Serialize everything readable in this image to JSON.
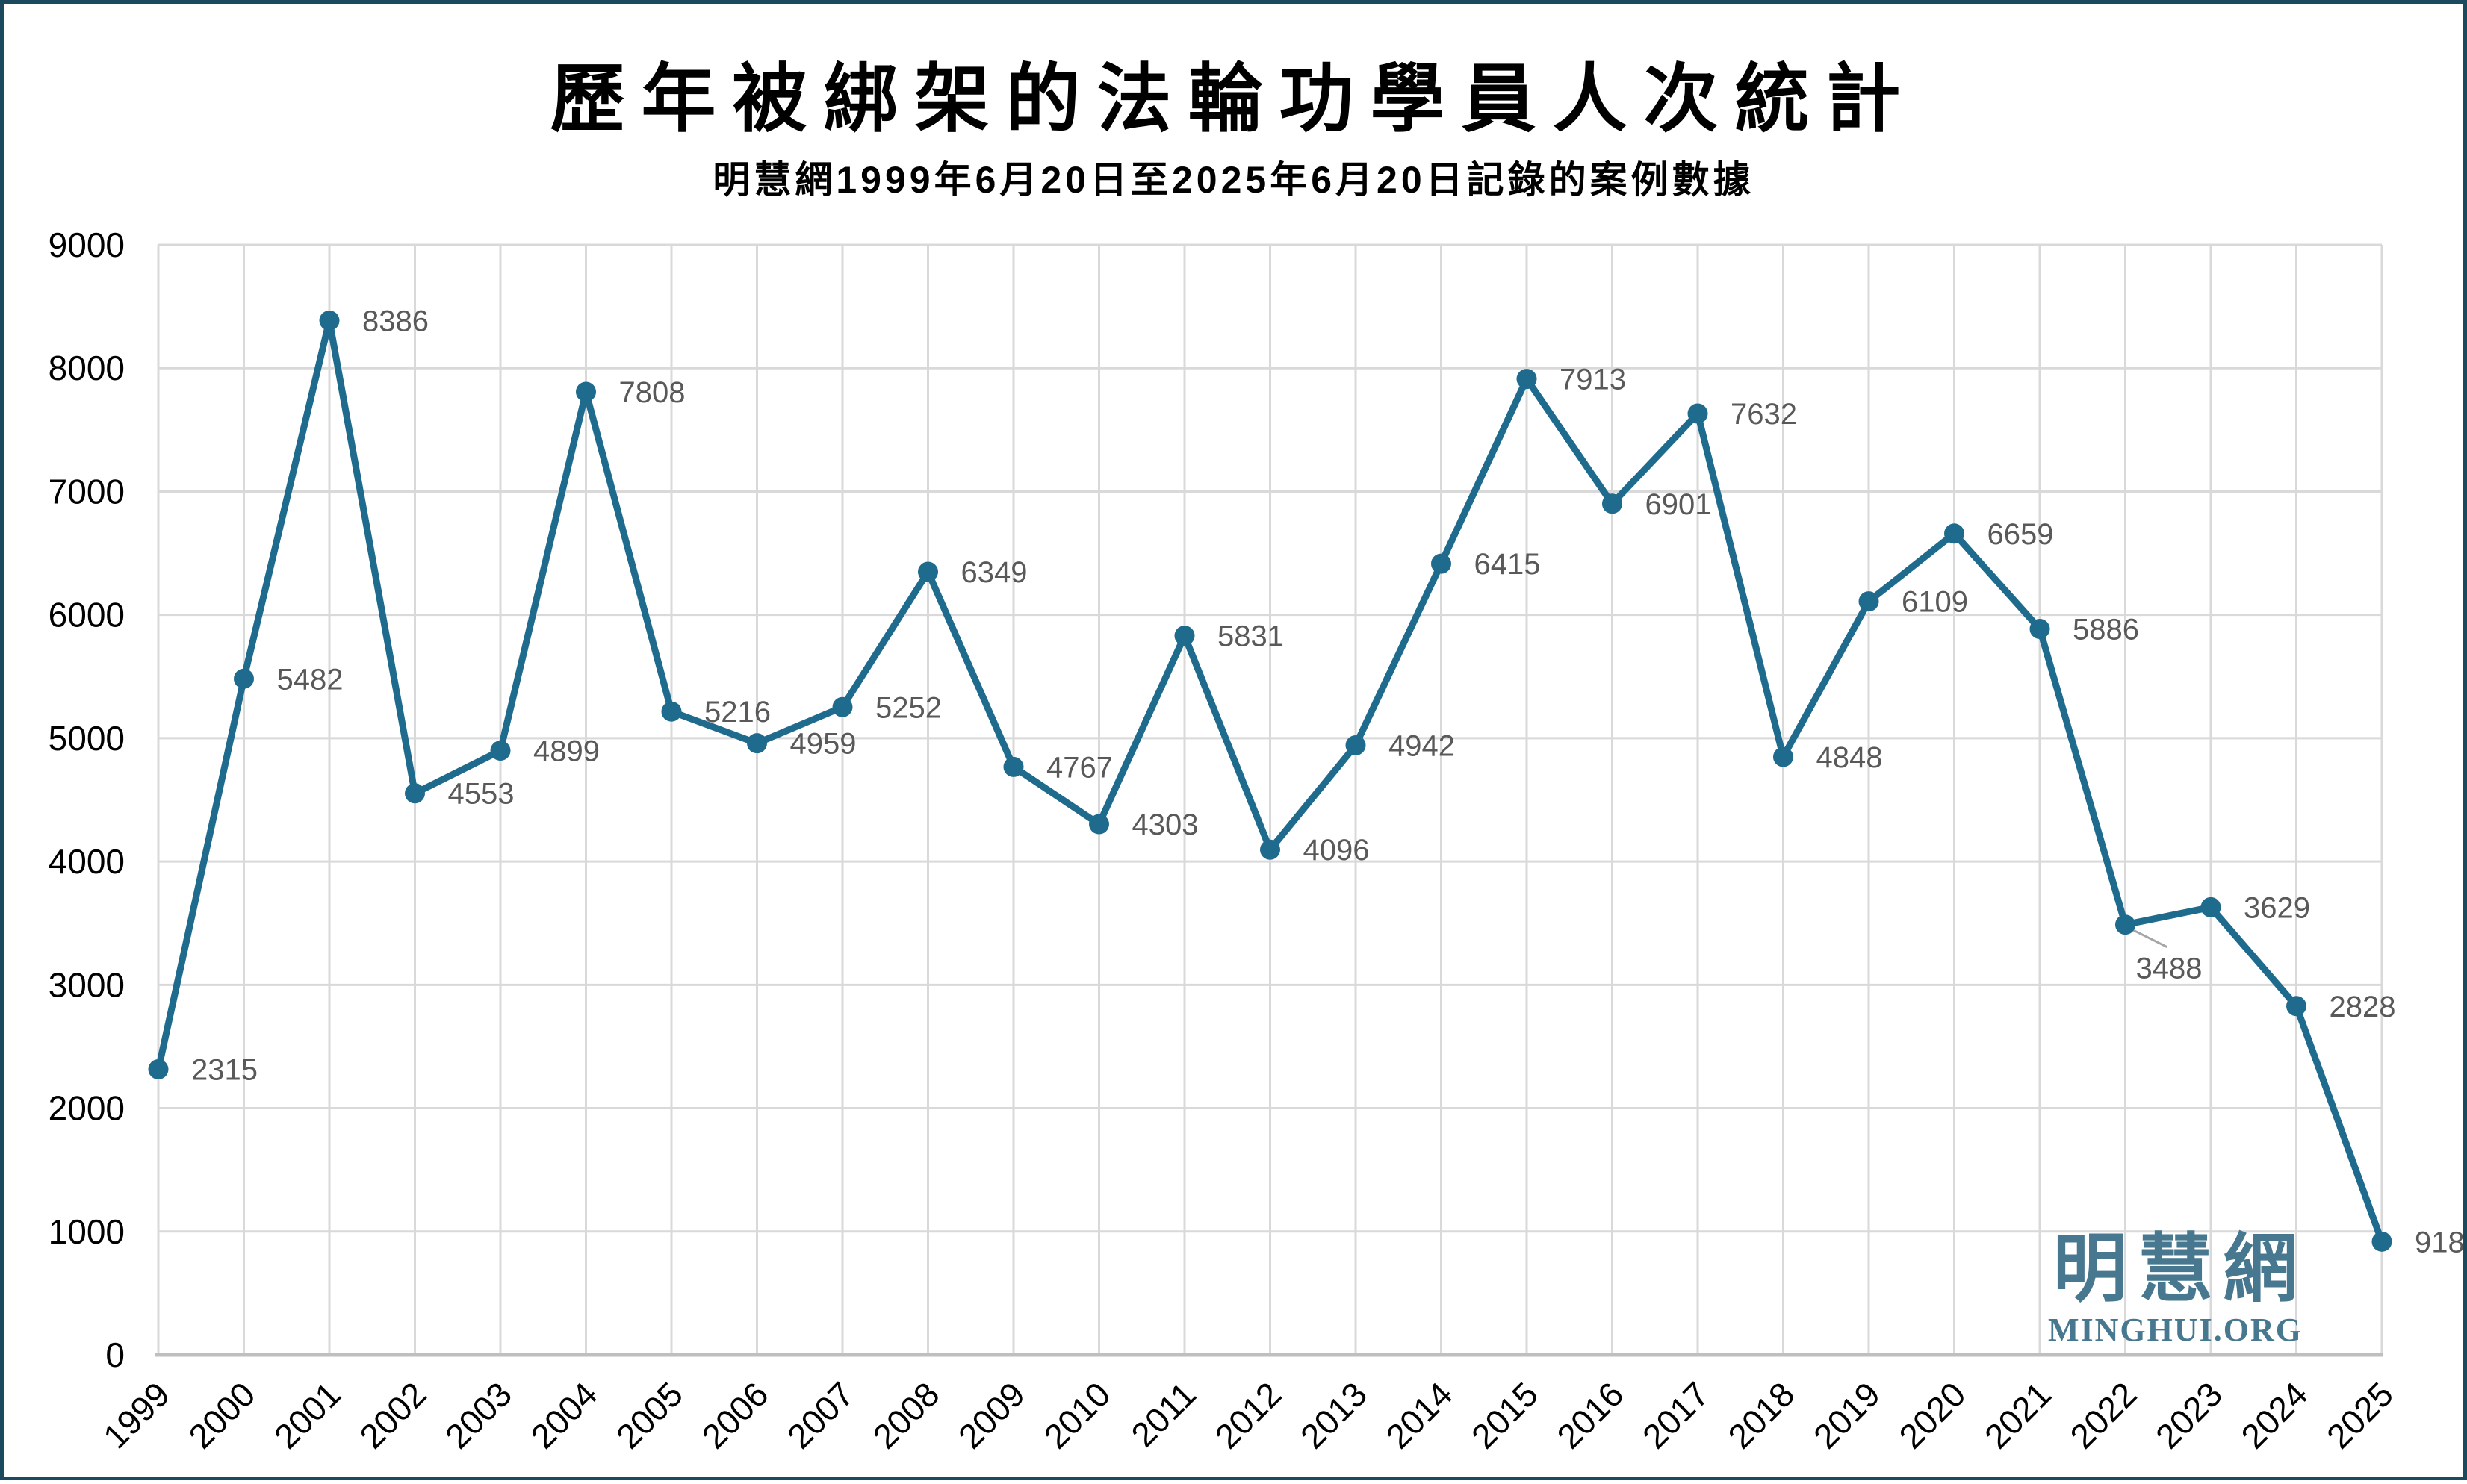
{
  "chart_data": {
    "type": "line",
    "title": "歷年被綁架的法輪功學員人次統計",
    "subtitle": "明慧網1999年6月20日至2025年6月20日記錄的案例數據",
    "categories": [
      1999,
      2000,
      2001,
      2002,
      2003,
      2004,
      2005,
      2006,
      2007,
      2008,
      2009,
      2010,
      2011,
      2012,
      2013,
      2014,
      2015,
      2016,
      2017,
      2018,
      2019,
      2020,
      2021,
      2022,
      2023,
      2024,
      2025
    ],
    "values": [
      2315,
      5482,
      8386,
      4553,
      4899,
      7808,
      5216,
      4959,
      5252,
      6349,
      4767,
      4303,
      5831,
      4096,
      4942,
      6415,
      7913,
      6901,
      7632,
      4848,
      6109,
      6659,
      5886,
      3488,
      3629,
      2828,
      918
    ],
    "ylim": [
      0,
      9000
    ],
    "yticks": [
      0,
      1000,
      2000,
      3000,
      4000,
      5000,
      6000,
      7000,
      8000,
      9000
    ],
    "grid": true,
    "legend": "none",
    "line_color": "#1F6B8D",
    "marker_color": "#1F6B8D",
    "data_label_color": "#595959",
    "gridline_color": "#D9D9D9",
    "axis_line_color": "#BFBFBF",
    "tick_label_color": "#000000",
    "annotations": [
      {
        "year": 2022,
        "value": 3488,
        "style": "below-with-leader",
        "leader_color": "#A6A6A6"
      }
    ],
    "watermark": {
      "cjk": "明慧網",
      "latin": "MINGHUI.ORG",
      "color": "#47788F"
    }
  }
}
